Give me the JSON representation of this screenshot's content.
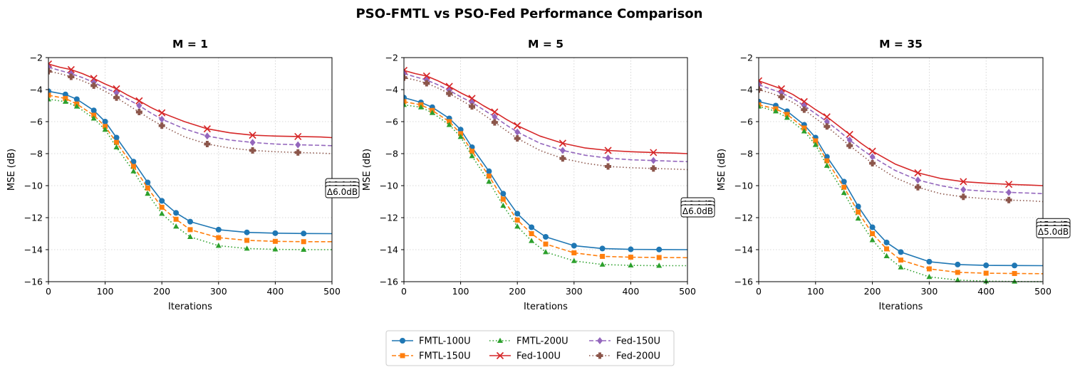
{
  "figure": {
    "title": "PSO-FMTL vs PSO-Fed Performance Comparison"
  },
  "chart_data": [
    {
      "type": "line",
      "title": "M = 1",
      "xlabel": "Iterations",
      "ylabel": "MSE (dB)",
      "xlim": [
        0,
        500
      ],
      "ylim": [
        -16,
        -2
      ],
      "xticks": [
        0,
        100,
        200,
        300,
        400,
        500
      ],
      "yticks": [
        -2,
        -4,
        -6,
        -8,
        -10,
        -12,
        -14,
        -16
      ],
      "grid": true,
      "annotations": [
        "Δ6.0dB",
        "Δ6.0dB",
        "Δ6.0dB"
      ],
      "series": [
        {
          "name": "FMTL-100U",
          "x": [
            0,
            30,
            50,
            80,
            100,
            120,
            150,
            175,
            200,
            225,
            250,
            300,
            350,
            400,
            450,
            500
          ],
          "values": [
            -4.1,
            -4.3,
            -4.6,
            -5.3,
            -6.0,
            -7.0,
            -8.5,
            -9.8,
            -10.95,
            -11.7,
            -12.25,
            -12.75,
            -12.92,
            -12.97,
            -12.99,
            -13.0
          ]
        },
        {
          "name": "FMTL-150U",
          "x": [
            0,
            30,
            50,
            80,
            100,
            120,
            150,
            175,
            200,
            225,
            250,
            300,
            350,
            400,
            450,
            500
          ],
          "values": [
            -4.35,
            -4.55,
            -4.9,
            -5.6,
            -6.3,
            -7.3,
            -8.8,
            -10.15,
            -11.35,
            -12.1,
            -12.75,
            -13.25,
            -13.42,
            -13.48,
            -13.5,
            -13.5
          ]
        },
        {
          "name": "FMTL-200U",
          "x": [
            0,
            30,
            50,
            80,
            100,
            120,
            150,
            175,
            200,
            225,
            250,
            300,
            350,
            400,
            450,
            500
          ],
          "values": [
            -4.6,
            -4.75,
            -5.05,
            -5.8,
            -6.5,
            -7.6,
            -9.1,
            -10.5,
            -11.75,
            -12.55,
            -13.2,
            -13.75,
            -13.93,
            -13.98,
            -14.0,
            -14.0
          ]
        },
        {
          "name": "Fed-100U",
          "x": [
            0,
            20,
            40,
            60,
            80,
            100,
            120,
            140,
            160,
            180,
            200,
            240,
            280,
            320,
            360,
            400,
            440,
            480,
            500
          ],
          "values": [
            -2.4,
            -2.6,
            -2.75,
            -3.0,
            -3.3,
            -3.65,
            -3.95,
            -4.35,
            -4.7,
            -5.1,
            -5.45,
            -6.0,
            -6.45,
            -6.7,
            -6.85,
            -6.9,
            -6.93,
            -6.96,
            -7.0
          ]
        },
        {
          "name": "Fed-150U",
          "x": [
            0,
            20,
            40,
            60,
            80,
            100,
            120,
            140,
            160,
            180,
            200,
            240,
            280,
            320,
            360,
            400,
            440,
            480,
            500
          ],
          "values": [
            -2.6,
            -2.8,
            -3.0,
            -3.25,
            -3.55,
            -3.9,
            -4.2,
            -4.6,
            -5.0,
            -5.45,
            -5.85,
            -6.45,
            -6.9,
            -7.15,
            -7.3,
            -7.4,
            -7.45,
            -7.48,
            -7.5
          ]
        },
        {
          "name": "Fed-200U",
          "x": [
            0,
            20,
            40,
            60,
            80,
            100,
            120,
            140,
            160,
            180,
            200,
            240,
            280,
            320,
            360,
            400,
            440,
            480,
            500
          ],
          "values": [
            -2.85,
            -3.0,
            -3.2,
            -3.45,
            -3.75,
            -4.1,
            -4.5,
            -4.95,
            -5.4,
            -5.85,
            -6.25,
            -6.95,
            -7.4,
            -7.65,
            -7.8,
            -7.88,
            -7.93,
            -7.97,
            -8.0
          ]
        }
      ]
    },
    {
      "type": "line",
      "title": "M = 5",
      "xlabel": "Iterations",
      "ylabel": "MSE (dB)",
      "xlim": [
        0,
        500
      ],
      "ylim": [
        -16,
        -2
      ],
      "xticks": [
        0,
        100,
        200,
        300,
        400,
        500
      ],
      "yticks": [
        -2,
        -4,
        -6,
        -8,
        -10,
        -12,
        -14,
        -16
      ],
      "grid": true,
      "annotations": [
        "Δ6.0dB",
        "Δ6.0dB",
        "Δ6.0dB"
      ],
      "series": [
        {
          "name": "FMTL-100U",
          "x": [
            0,
            30,
            50,
            80,
            100,
            120,
            150,
            175,
            200,
            225,
            250,
            300,
            350,
            400,
            450,
            500
          ],
          "values": [
            -4.5,
            -4.8,
            -5.1,
            -5.8,
            -6.5,
            -7.6,
            -9.1,
            -10.5,
            -11.75,
            -12.6,
            -13.2,
            -13.75,
            -13.93,
            -13.98,
            -13.99,
            -14.0
          ]
        },
        {
          "name": "FMTL-150U",
          "x": [
            0,
            30,
            50,
            80,
            100,
            120,
            150,
            175,
            200,
            225,
            250,
            300,
            350,
            400,
            450,
            500
          ],
          "values": [
            -4.75,
            -4.95,
            -5.3,
            -6.0,
            -6.75,
            -7.85,
            -9.4,
            -10.85,
            -12.15,
            -13.0,
            -13.65,
            -14.2,
            -14.42,
            -14.47,
            -14.49,
            -14.5
          ]
        },
        {
          "name": "FMTL-200U",
          "x": [
            0,
            30,
            50,
            80,
            100,
            120,
            150,
            175,
            200,
            225,
            250,
            300,
            350,
            400,
            450,
            500
          ],
          "values": [
            -4.95,
            -5.1,
            -5.45,
            -6.2,
            -6.95,
            -8.15,
            -9.75,
            -11.25,
            -12.55,
            -13.45,
            -14.15,
            -14.7,
            -14.93,
            -14.98,
            -15.0,
            -15.0
          ]
        },
        {
          "name": "Fed-100U",
          "x": [
            0,
            20,
            40,
            60,
            80,
            100,
            120,
            140,
            160,
            180,
            200,
            240,
            280,
            320,
            360,
            400,
            440,
            480,
            500
          ],
          "values": [
            -2.8,
            -3.0,
            -3.15,
            -3.45,
            -3.8,
            -4.2,
            -4.55,
            -5.0,
            -5.4,
            -5.85,
            -6.25,
            -6.9,
            -7.35,
            -7.65,
            -7.8,
            -7.88,
            -7.93,
            -7.97,
            -8.0
          ]
        },
        {
          "name": "Fed-150U",
          "x": [
            0,
            20,
            40,
            60,
            80,
            100,
            120,
            140,
            160,
            180,
            200,
            240,
            280,
            320,
            360,
            400,
            440,
            480,
            500
          ],
          "values": [
            -3.0,
            -3.2,
            -3.4,
            -3.7,
            -4.05,
            -4.45,
            -4.8,
            -5.25,
            -5.7,
            -6.2,
            -6.65,
            -7.35,
            -7.8,
            -8.1,
            -8.28,
            -8.38,
            -8.43,
            -8.48,
            -8.5
          ]
        },
        {
          "name": "Fed-200U",
          "x": [
            0,
            20,
            40,
            60,
            80,
            100,
            120,
            140,
            160,
            180,
            200,
            240,
            280,
            320,
            360,
            400,
            440,
            480,
            500
          ],
          "values": [
            -3.25,
            -3.4,
            -3.6,
            -3.9,
            -4.25,
            -4.65,
            -5.05,
            -5.55,
            -6.05,
            -6.55,
            -7.05,
            -7.8,
            -8.3,
            -8.6,
            -8.8,
            -8.88,
            -8.93,
            -8.97,
            -9.0
          ]
        }
      ]
    },
    {
      "type": "line",
      "title": "M = 35",
      "xlabel": "Iterations",
      "ylabel": "MSE (dB)",
      "xlim": [
        0,
        500
      ],
      "ylim": [
        -16,
        -2
      ],
      "xticks": [
        0,
        100,
        200,
        300,
        400,
        500
      ],
      "yticks": [
        -2,
        -4,
        -6,
        -8,
        -10,
        -12,
        -14,
        -16
      ],
      "grid": true,
      "annotations": [
        "Δ5.0dB",
        "Δ5.0dB",
        "Δ5.0dB"
      ],
      "series": [
        {
          "name": "FMTL-100U",
          "x": [
            0,
            30,
            50,
            80,
            100,
            120,
            150,
            175,
            200,
            225,
            250,
            300,
            350,
            400,
            450,
            500
          ],
          "values": [
            -4.75,
            -5.0,
            -5.35,
            -6.2,
            -7.0,
            -8.2,
            -9.75,
            -11.3,
            -12.6,
            -13.55,
            -14.15,
            -14.75,
            -14.93,
            -14.98,
            -14.99,
            -15.0
          ]
        },
        {
          "name": "FMTL-150U",
          "x": [
            0,
            30,
            50,
            80,
            100,
            120,
            150,
            175,
            200,
            225,
            250,
            300,
            350,
            400,
            450,
            500
          ],
          "values": [
            -4.95,
            -5.2,
            -5.55,
            -6.4,
            -7.2,
            -8.45,
            -10.1,
            -11.65,
            -13.0,
            -13.95,
            -14.65,
            -15.2,
            -15.42,
            -15.47,
            -15.49,
            -15.5
          ]
        },
        {
          "name": "FMTL-200U",
          "x": [
            0,
            30,
            50,
            80,
            100,
            120,
            150,
            175,
            200,
            225,
            250,
            300,
            350,
            400,
            450,
            500
          ],
          "values": [
            -5.05,
            -5.35,
            -5.75,
            -6.6,
            -7.45,
            -8.75,
            -10.45,
            -12.05,
            -13.4,
            -14.4,
            -15.1,
            -15.7,
            -15.9,
            -15.97,
            -15.99,
            -16.0
          ]
        },
        {
          "name": "Fed-100U",
          "x": [
            0,
            20,
            40,
            60,
            80,
            100,
            120,
            140,
            160,
            180,
            200,
            240,
            280,
            320,
            360,
            400,
            440,
            480,
            500
          ],
          "values": [
            -3.45,
            -3.7,
            -3.95,
            -4.3,
            -4.75,
            -5.25,
            -5.7,
            -6.25,
            -6.8,
            -7.35,
            -7.85,
            -8.65,
            -9.2,
            -9.55,
            -9.75,
            -9.85,
            -9.92,
            -9.97,
            -10.0
          ]
        },
        {
          "name": "Fed-150U",
          "x": [
            0,
            20,
            40,
            60,
            80,
            100,
            120,
            140,
            160,
            180,
            200,
            240,
            280,
            320,
            360,
            400,
            440,
            480,
            500
          ],
          "values": [
            -3.7,
            -3.95,
            -4.2,
            -4.55,
            -5.0,
            -5.5,
            -6.0,
            -6.55,
            -7.15,
            -7.7,
            -8.2,
            -9.05,
            -9.65,
            -10.0,
            -10.25,
            -10.35,
            -10.42,
            -10.47,
            -10.5
          ]
        },
        {
          "name": "Fed-200U",
          "x": [
            0,
            20,
            40,
            60,
            80,
            100,
            120,
            140,
            160,
            180,
            200,
            240,
            280,
            320,
            360,
            400,
            440,
            480,
            500
          ],
          "values": [
            -4.0,
            -4.2,
            -4.45,
            -4.8,
            -5.25,
            -5.8,
            -6.3,
            -6.9,
            -7.5,
            -8.05,
            -8.6,
            -9.5,
            -10.1,
            -10.5,
            -10.7,
            -10.82,
            -10.9,
            -10.95,
            -11.0
          ]
        }
      ]
    }
  ],
  "legend": {
    "placement": "bottom-center",
    "columns": 3,
    "entries": [
      "FMTL-100U",
      "FMTL-150U",
      "FMTL-200U",
      "Fed-100U",
      "Fed-150U",
      "Fed-200U"
    ]
  },
  "styles": {
    "FMTL-100U": {
      "color": "#1f77b4",
      "dash": "solid",
      "marker": "circle"
    },
    "FMTL-150U": {
      "color": "#ff7f0e",
      "dash": "dashed",
      "marker": "square"
    },
    "FMTL-200U": {
      "color": "#2ca02c",
      "dash": "dotted",
      "marker": "triangle"
    },
    "Fed-100U": {
      "color": "#d62728",
      "dash": "solid",
      "marker": "x"
    },
    "Fed-150U": {
      "color": "#9467bd",
      "dash": "dashed",
      "marker": "diamond"
    },
    "Fed-200U": {
      "color": "#8c564b",
      "dash": "dotted",
      "marker": "plus"
    }
  }
}
